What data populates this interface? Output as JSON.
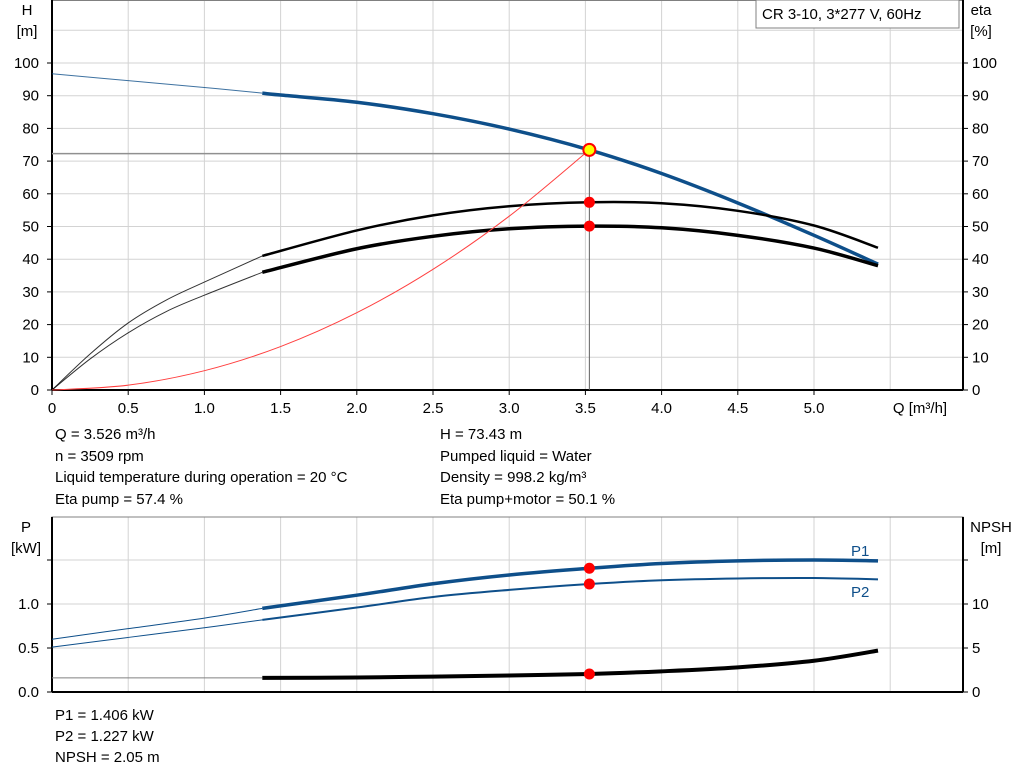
{
  "chart_data": [
    {
      "type": "line",
      "title": "CR 3-10, 3*277 V, 60Hz",
      "xlabel": "Q [m³/h]",
      "ylabel_left": [
        "H",
        "[m]"
      ],
      "ylabel_right": [
        "eta",
        "[%]"
      ],
      "xlim": [
        0,
        6
      ],
      "ylim": [
        0,
        119
      ],
      "grid": true,
      "x_ticks": [
        "0",
        "0.5",
        "1.0",
        "1.5",
        "2.0",
        "2.5",
        "3.0",
        "3.5",
        "4.0",
        "4.5",
        "5.0"
      ],
      "y_ticks_left": [
        "0",
        "10",
        "20",
        "30",
        "40",
        "50",
        "60",
        "70",
        "80",
        "90",
        "100"
      ],
      "y_ticks_right": [
        "0",
        "10",
        "20",
        "30",
        "40",
        "50",
        "60",
        "70",
        "80",
        "90",
        "100"
      ],
      "series": [
        {
          "key": "H",
          "color": "#0e4f8a",
          "extrapolated": {
            "x": [
              0,
              0.5,
              1.0,
              1.38
            ],
            "y": [
              96.7,
              94.6,
              92.5,
              90.8
            ]
          },
          "x": [
            1.38,
            1.5,
            2.0,
            2.5,
            3.0,
            3.526,
            4.0,
            4.5,
            5.0,
            5.42
          ],
          "y": [
            90.8,
            90.2,
            88.0,
            84.5,
            79.8,
            73.43,
            66.2,
            57.2,
            47.3,
            38.5
          ]
        },
        {
          "key": "eta_pump",
          "color": "#000000",
          "extrapolated": {
            "x": [
              0,
              0.25,
              0.5,
              0.75,
              1.0,
              1.38
            ],
            "y": [
              0,
              11,
              20.5,
              27.5,
              33,
              41
            ]
          },
          "x": [
            1.38,
            2.0,
            2.5,
            3.0,
            3.526,
            4.0,
            4.5,
            5.0,
            5.42
          ],
          "y": [
            41,
            48.8,
            53.4,
            56.2,
            57.4,
            57.1,
            54.8,
            50.3,
            43.5
          ]
        },
        {
          "key": "eta_pump_motor",
          "color": "#000000",
          "extrapolated": {
            "x": [
              0,
              0.25,
              0.5,
              0.75,
              1.0,
              1.38
            ],
            "y": [
              0,
              9.5,
              17.5,
              24,
              29,
              36
            ]
          },
          "x": [
            1.38,
            2.0,
            2.5,
            3.0,
            3.526,
            4.0,
            4.5,
            5.0,
            5.42
          ],
          "y": [
            36,
            43.2,
            47.0,
            49.3,
            50.1,
            49.6,
            47.3,
            43.4,
            38.0
          ]
        },
        {
          "key": "system_curve",
          "color": "#ff4040",
          "x": [
            0,
            0.5,
            1.0,
            1.5,
            2.0,
            2.5,
            3.0,
            3.526
          ],
          "y": [
            0,
            1.48,
            5.91,
            13.29,
            23.63,
            36.91,
            53.15,
            73.43
          ]
        }
      ],
      "operating_point": {
        "Q": 3.526,
        "H": 73.43,
        "eta_pump": 57.4,
        "eta_pump_motor": 50.1
      }
    },
    {
      "type": "line",
      "ylabel_left": [
        "P",
        "[kW]"
      ],
      "ylabel_right": [
        "NPSH",
        "[m]"
      ],
      "xlim": [
        0,
        6
      ],
      "ylim_left": [
        0,
        2
      ],
      "ylim_right": [
        0,
        20
      ],
      "grid": true,
      "y_ticks_left": [
        "0.0",
        "0.5",
        "1.0"
      ],
      "y_ticks_right": [
        "0",
        "5",
        "10"
      ],
      "series": [
        {
          "name": "P1",
          "color": "#0e4f8a",
          "extrapolated": {
            "x": [
              0,
              0.5,
              1.0,
              1.38
            ],
            "y": [
              0.6,
              0.72,
              0.84,
              0.95
            ]
          },
          "x": [
            1.38,
            2.0,
            2.5,
            3.0,
            3.526,
            4.0,
            4.5,
            5.0,
            5.42
          ],
          "y": [
            0.95,
            1.1,
            1.23,
            1.33,
            1.406,
            1.46,
            1.49,
            1.5,
            1.49
          ]
        },
        {
          "name": "P2",
          "color": "#0e4f8a",
          "extrapolated": {
            "x": [
              0,
              0.5,
              1.0,
              1.38
            ],
            "y": [
              0.51,
              0.62,
              0.73,
              0.82
            ]
          },
          "x": [
            1.38,
            2.0,
            2.5,
            3.0,
            3.526,
            4.0,
            4.5,
            5.0,
            5.42
          ],
          "y": [
            0.82,
            0.96,
            1.08,
            1.16,
            1.227,
            1.27,
            1.29,
            1.295,
            1.28
          ]
        },
        {
          "key": "NPSH",
          "color": "#000000",
          "axis": "right",
          "extrapolated": {
            "x": [
              0,
              1.38
            ],
            "y": [
              1.6,
              1.6
            ]
          },
          "x": [
            1.38,
            2.0,
            2.5,
            3.0,
            3.526,
            4.0,
            4.5,
            5.0,
            5.42
          ],
          "y": [
            1.6,
            1.65,
            1.75,
            1.88,
            2.05,
            2.35,
            2.8,
            3.55,
            4.7
          ]
        }
      ],
      "operating_point": {
        "Q": 3.526,
        "P1": 1.406,
        "P2": 1.227,
        "NPSH": 2.05
      }
    }
  ],
  "info_top": {
    "left": [
      "Q = 3.526 m³/h",
      "n = 3509 rpm",
      "Liquid temperature during operation = 20 °C",
      "Eta pump = 57.4 %"
    ],
    "right": [
      "H = 73.43 m",
      "Pumped liquid = Water",
      "Density = 998.2 kg/m³",
      "Eta pump+motor = 50.1 %"
    ]
  },
  "info_bottom": [
    "P1 = 1.406 kW",
    "P2 = 1.227 kW",
    "NPSH = 2.05 m"
  ],
  "colors": {
    "blue": "#0e4f8a",
    "point": "#ff0000",
    "op_point_fill": "#ffff00",
    "grid": "#d3d3d3"
  }
}
